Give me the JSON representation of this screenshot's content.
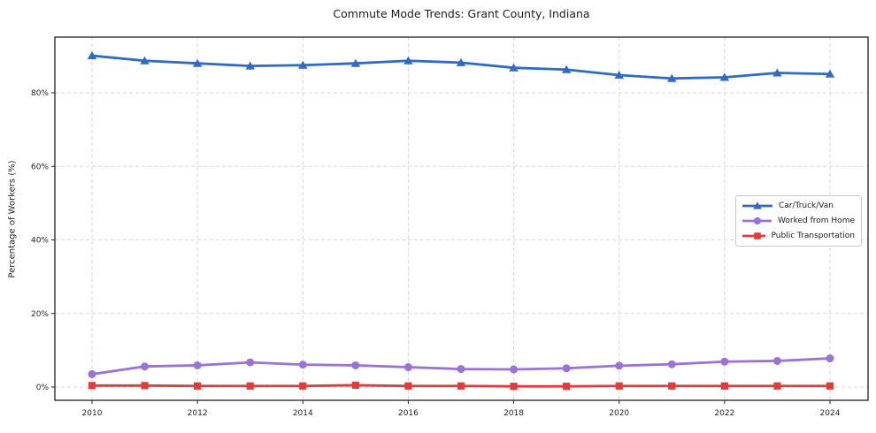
{
  "chart_data": {
    "type": "line",
    "title": "Commute Mode Trends: Grant County, Indiana",
    "xlabel": "",
    "ylabel": "Percentage of Workers (%)",
    "x": [
      2010,
      2011,
      2012,
      2013,
      2014,
      2015,
      2016,
      2017,
      2018,
      2019,
      2020,
      2021,
      2022,
      2023,
      2024
    ],
    "series": [
      {
        "name": "Car/Truck/Van",
        "color": "#2e6ac6",
        "marker": "triangle",
        "values": [
          90.1,
          88.7,
          88.0,
          87.3,
          87.5,
          88.0,
          88.7,
          88.2,
          86.8,
          86.3,
          84.8,
          83.9,
          84.2,
          85.4,
          85.1
        ]
      },
      {
        "name": "Worked from Home",
        "color": "#9b72d6",
        "marker": "circle",
        "values": [
          3.5,
          5.6,
          5.9,
          6.7,
          6.1,
          5.9,
          5.4,
          4.9,
          4.8,
          5.1,
          5.8,
          6.2,
          6.9,
          7.1,
          7.8
        ]
      },
      {
        "name": "Public Transportation",
        "color": "#e03c3c",
        "marker": "square",
        "values": [
          0.4,
          0.4,
          0.3,
          0.3,
          0.3,
          0.5,
          0.3,
          0.3,
          0.2,
          0.2,
          0.3,
          0.3,
          0.3,
          0.3,
          0.3
        ]
      }
    ],
    "xticks": [
      "2010",
      "2012",
      "2014",
      "2016",
      "2018",
      "2020",
      "2022",
      "2024"
    ],
    "xtick_values": [
      2010,
      2012,
      2014,
      2016,
      2018,
      2020,
      2022,
      2024
    ],
    "yticks": [
      "0%",
      "20%",
      "40%",
      "60%",
      "80%"
    ],
    "ytick_values": [
      0,
      20,
      40,
      60,
      80
    ],
    "xlim": [
      2009.3,
      2024.7
    ],
    "ylim": [
      -3.6,
      95.1
    ],
    "grid": true,
    "legend_position": "center-right"
  }
}
